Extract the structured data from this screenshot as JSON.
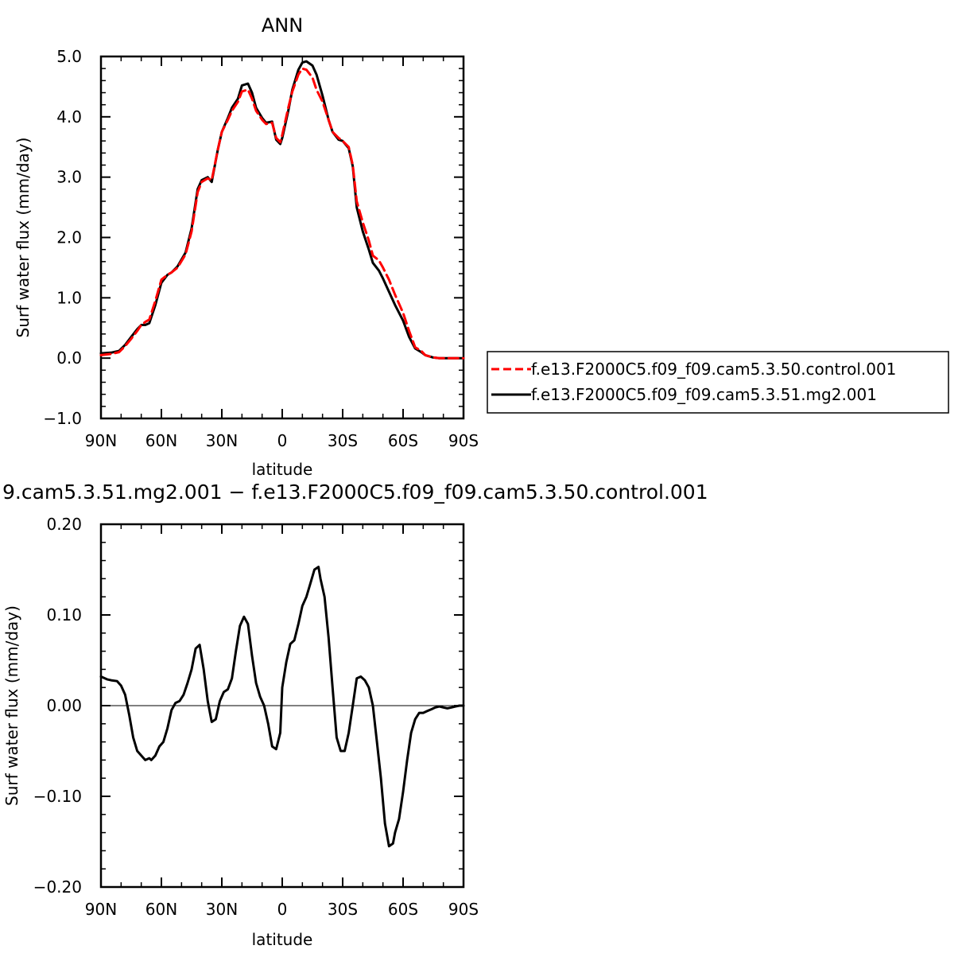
{
  "chart_data": [
    {
      "type": "line",
      "title": "ANN",
      "xlabel": "latitude",
      "ylabel": "Surf water flux (mm/day)",
      "xlim": [
        90,
        -90
      ],
      "ylim": [
        -1.0,
        5.0
      ],
      "xticks": [
        {
          "value": 90,
          "label": "90N"
        },
        {
          "value": 60,
          "label": "60N"
        },
        {
          "value": 30,
          "label": "30N"
        },
        {
          "value": 0,
          "label": "0"
        },
        {
          "value": -30,
          "label": "30S"
        },
        {
          "value": -60,
          "label": "60S"
        },
        {
          "value": -90,
          "label": "90S"
        }
      ],
      "yticks": [
        {
          "value": 5.0,
          "label": "5.0"
        },
        {
          "value": 4.0,
          "label": "4.0"
        },
        {
          "value": 3.0,
          "label": "3.0"
        },
        {
          "value": 2.0,
          "label": "2.0"
        },
        {
          "value": 1.0,
          "label": "1.0"
        },
        {
          "value": 0.0,
          "label": "0.0"
        },
        {
          "value": -1.0,
          "label": "−1.0"
        }
      ],
      "legend_position": "right",
      "series": [
        {
          "name": "f.e13.F2000C5.f09_f09.cam5.3.50.control.001",
          "color": "#ff0000",
          "dash": "dashed",
          "x": [
            90,
            85,
            81,
            78,
            75,
            72,
            70,
            68,
            66,
            63,
            60,
            57,
            55,
            52,
            48,
            45,
            42,
            40,
            37,
            35,
            32,
            30,
            27,
            25,
            22,
            20,
            17,
            15,
            13,
            10,
            8,
            5,
            3,
            1,
            0,
            -3,
            -5,
            -8,
            -10,
            -12,
            -15,
            -17,
            -20,
            -23,
            -25,
            -28,
            -30,
            -33,
            -35,
            -37,
            -40,
            -43,
            -45,
            -48,
            -50,
            -53,
            -56,
            -60,
            -63,
            -66,
            -69,
            -71,
            -73,
            -75,
            -78,
            -81,
            -84,
            -87,
            -90
          ],
          "y": [
            0.05,
            0.07,
            0.1,
            0.2,
            0.32,
            0.45,
            0.55,
            0.6,
            0.64,
            0.95,
            1.3,
            1.38,
            1.42,
            1.5,
            1.72,
            2.1,
            2.75,
            2.92,
            2.98,
            2.95,
            3.45,
            3.75,
            3.95,
            4.1,
            4.25,
            4.42,
            4.45,
            4.3,
            4.1,
            3.95,
            3.88,
            3.9,
            3.65,
            3.58,
            3.7,
            4.15,
            4.42,
            4.7,
            4.8,
            4.78,
            4.65,
            4.45,
            4.25,
            3.95,
            3.75,
            3.65,
            3.6,
            3.5,
            3.2,
            2.6,
            2.25,
            1.95,
            1.7,
            1.62,
            1.5,
            1.3,
            1.05,
            0.75,
            0.45,
            0.18,
            0.12,
            0.05,
            0.03,
            0.01,
            0.0,
            0.0,
            0.0,
            0.0,
            0.0
          ]
        },
        {
          "name": "f.e13.F2000C5.f09_f09.cam5.3.51.mg2.001",
          "color": "#000000",
          "dash": "solid",
          "x": [
            90,
            85,
            81,
            78,
            75,
            72,
            70,
            68,
            66,
            63,
            60,
            57,
            55,
            52,
            48,
            45,
            42,
            40,
            37,
            35,
            32,
            30,
            27,
            25,
            22,
            20,
            17,
            15,
            13,
            10,
            8,
            5,
            3,
            1,
            0,
            -3,
            -5,
            -8,
            -10,
            -12,
            -15,
            -17,
            -20,
            -23,
            -25,
            -28,
            -30,
            -33,
            -35,
            -37,
            -40,
            -43,
            -45,
            -48,
            -50,
            -53,
            -56,
            -60,
            -63,
            -66,
            -69,
            -71,
            -73,
            -75,
            -78,
            -81,
            -84,
            -87,
            -90
          ],
          "y": [
            0.08,
            0.09,
            0.12,
            0.22,
            0.35,
            0.48,
            0.55,
            0.55,
            0.58,
            0.88,
            1.25,
            1.38,
            1.42,
            1.52,
            1.75,
            2.15,
            2.8,
            2.95,
            3.0,
            2.92,
            3.45,
            3.75,
            3.98,
            4.15,
            4.3,
            4.52,
            4.55,
            4.4,
            4.15,
            3.98,
            3.9,
            3.92,
            3.62,
            3.55,
            3.65,
            4.1,
            4.45,
            4.78,
            4.9,
            4.92,
            4.85,
            4.7,
            4.35,
            3.95,
            3.75,
            3.62,
            3.6,
            3.48,
            3.18,
            2.5,
            2.1,
            1.8,
            1.58,
            1.45,
            1.32,
            1.1,
            0.88,
            0.62,
            0.35,
            0.16,
            0.1,
            0.05,
            0.03,
            0.01,
            0.0,
            0.0,
            0.0,
            0.0,
            0.0
          ]
        }
      ]
    },
    {
      "type": "line",
      "title": "9.cam5.3.51.mg2.001 − f.e13.F2000C5.f09_f09.cam5.3.50.control.001",
      "xlabel": "latitude",
      "ylabel": "Surf water flux (mm/day)",
      "xlim": [
        90,
        -90
      ],
      "ylim": [
        -0.2,
        0.2
      ],
      "xticks": [
        {
          "value": 90,
          "label": "90N"
        },
        {
          "value": 60,
          "label": "60N"
        },
        {
          "value": 30,
          "label": "30N"
        },
        {
          "value": 0,
          "label": "0"
        },
        {
          "value": -30,
          "label": "30S"
        },
        {
          "value": -60,
          "label": "60S"
        },
        {
          "value": -90,
          "label": "90S"
        }
      ],
      "yticks": [
        {
          "value": 0.2,
          "label": "0.20"
        },
        {
          "value": 0.1,
          "label": "0.10"
        },
        {
          "value": 0.0,
          "label": "0.00"
        },
        {
          "value": -0.1,
          "label": "−0.10"
        },
        {
          "value": -0.2,
          "label": "−0.20"
        }
      ],
      "series": [
        {
          "color": "#000000",
          "dash": "solid",
          "x": [
            90,
            87,
            85,
            82,
            80,
            78,
            76,
            74,
            72,
            70,
            68,
            66,
            65,
            63,
            61,
            59,
            57,
            55,
            53,
            51,
            49,
            47,
            45,
            43,
            41,
            39,
            37,
            35,
            33,
            31,
            29,
            27,
            25,
            23,
            21,
            19,
            17,
            15,
            13,
            11,
            9,
            7,
            5,
            3,
            1,
            0,
            -2,
            -4,
            -6,
            -8,
            -10,
            -12,
            -14,
            -16,
            -18,
            -19,
            -21,
            -23,
            -25,
            -27,
            -29,
            -31,
            -33,
            -35,
            -37,
            -39,
            -41,
            -43,
            -45,
            -47,
            -49,
            -51,
            -53,
            -55,
            -56,
            -58,
            -60,
            -62,
            -64,
            -66,
            -68,
            -70,
            -72,
            -74,
            -76,
            -78,
            -80,
            -82,
            -84,
            -86,
            -88,
            -90
          ],
          "y": [
            0.032,
            0.029,
            0.028,
            0.027,
            0.022,
            0.012,
            -0.01,
            -0.035,
            -0.05,
            -0.055,
            -0.06,
            -0.058,
            -0.06,
            -0.055,
            -0.045,
            -0.04,
            -0.025,
            -0.005,
            0.003,
            0.005,
            0.012,
            0.025,
            0.04,
            0.063,
            0.067,
            0.04,
            0.005,
            -0.018,
            -0.015,
            0.005,
            0.015,
            0.018,
            0.03,
            0.06,
            0.088,
            0.098,
            0.09,
            0.055,
            0.025,
            0.01,
            0.0,
            -0.02,
            -0.045,
            -0.048,
            -0.03,
            0.02,
            0.048,
            0.068,
            0.072,
            0.09,
            0.11,
            0.12,
            0.135,
            0.15,
            0.153,
            0.14,
            0.12,
            0.075,
            0.02,
            -0.035,
            -0.05,
            -0.05,
            -0.03,
            0.0,
            0.03,
            0.032,
            0.028,
            0.02,
            0.0,
            -0.04,
            -0.08,
            -0.13,
            -0.155,
            -0.152,
            -0.14,
            -0.125,
            -0.095,
            -0.06,
            -0.03,
            -0.015,
            -0.008,
            -0.008,
            -0.006,
            -0.004,
            -0.002,
            -0.001,
            -0.002,
            -0.003,
            -0.002,
            -0.001,
            0.0,
            0.0
          ]
        }
      ]
    }
  ]
}
